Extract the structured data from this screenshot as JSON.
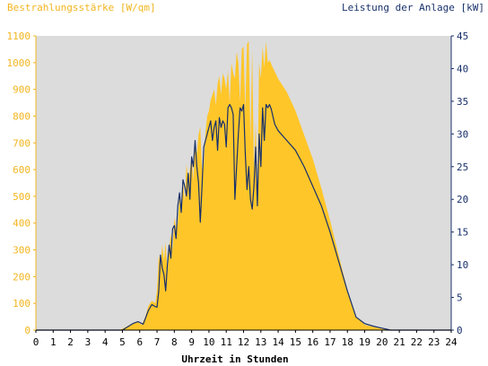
{
  "chart_data": {
    "type": "area",
    "left_axis_title": "Bestrahlungsstärke [W/qm]",
    "right_axis_title": "Leistung der Anlage [kW]",
    "xlabel": "Uhrzeit in Stunden",
    "xlim": [
      0,
      24
    ],
    "ylim_left": [
      0,
      1100
    ],
    "ylim_right": [
      0,
      45
    ],
    "x_ticks": [
      "0",
      "1",
      "2",
      "3",
      "4",
      "5",
      "6",
      "7",
      "8",
      "9",
      "10",
      "11",
      "12",
      "13",
      "14",
      "15",
      "16",
      "17",
      "18",
      "19",
      "20",
      "21",
      "22",
      "23",
      "24"
    ],
    "y_left_ticks": [
      "0",
      "100",
      "200",
      "300",
      "400",
      "500",
      "600",
      "700",
      "800",
      "900",
      "1000",
      "1100"
    ],
    "y_right_ticks": [
      "0",
      "5",
      "10",
      "15",
      "20",
      "25",
      "30",
      "35",
      "40",
      "45"
    ],
    "colors": {
      "irradiance": "#ffc629",
      "power": "#17306b",
      "plot_bg": "#dcdcdc",
      "left_axis": "#f2b51f",
      "right_axis": "#17306b"
    },
    "series": [
      {
        "unit": "W/qm",
        "axis": "left",
        "points": [
          [
            0,
            0
          ],
          [
            4.8,
            0
          ],
          [
            5.0,
            5
          ],
          [
            5.3,
            15
          ],
          [
            5.6,
            25
          ],
          [
            5.9,
            30
          ],
          [
            6.1,
            20
          ],
          [
            6.3,
            45
          ],
          [
            6.5,
            90
          ],
          [
            6.7,
            110
          ],
          [
            6.9,
            100
          ],
          [
            7.0,
            150
          ],
          [
            7.1,
            280
          ],
          [
            7.2,
            240
          ],
          [
            7.3,
            320
          ],
          [
            7.4,
            260
          ],
          [
            7.5,
            330
          ],
          [
            7.6,
            210
          ],
          [
            7.7,
            300
          ],
          [
            7.8,
            360
          ],
          [
            7.9,
            300
          ],
          [
            8.0,
            420
          ],
          [
            8.1,
            380
          ],
          [
            8.2,
            400
          ],
          [
            8.3,
            500
          ],
          [
            8.4,
            460
          ],
          [
            8.5,
            560
          ],
          [
            8.6,
            480
          ],
          [
            8.7,
            620
          ],
          [
            8.8,
            560
          ],
          [
            8.9,
            600
          ],
          [
            9.0,
            650
          ],
          [
            9.1,
            560
          ],
          [
            9.2,
            700
          ],
          [
            9.3,
            660
          ],
          [
            9.4,
            730
          ],
          [
            9.5,
            760
          ],
          [
            9.6,
            600
          ],
          [
            9.7,
            620
          ],
          [
            9.8,
            740
          ],
          [
            9.9,
            800
          ],
          [
            10.0,
            820
          ],
          [
            10.1,
            860
          ],
          [
            10.2,
            880
          ],
          [
            10.3,
            900
          ],
          [
            10.4,
            840
          ],
          [
            10.5,
            920
          ],
          [
            10.6,
            950
          ],
          [
            10.7,
            880
          ],
          [
            10.8,
            960
          ],
          [
            10.9,
            940
          ],
          [
            11.0,
            900
          ],
          [
            11.1,
            970
          ],
          [
            11.2,
            850
          ],
          [
            11.3,
            1000
          ],
          [
            11.4,
            960
          ],
          [
            11.5,
            940
          ],
          [
            11.6,
            1040
          ],
          [
            11.7,
            1000
          ],
          [
            11.8,
            850
          ],
          [
            11.9,
            1050
          ],
          [
            12.0,
            1060
          ],
          [
            12.1,
            820
          ],
          [
            12.2,
            1070
          ],
          [
            12.3,
            1080
          ],
          [
            12.4,
            700
          ],
          [
            12.5,
            1050
          ],
          [
            12.6,
            600
          ],
          [
            12.7,
            780
          ],
          [
            12.8,
            520
          ],
          [
            12.9,
            1000
          ],
          [
            13.0,
            940
          ],
          [
            13.1,
            1060
          ],
          [
            13.2,
            980
          ],
          [
            13.3,
            1080
          ],
          [
            13.4,
            1000
          ],
          [
            13.5,
            1010
          ],
          [
            13.7,
            980
          ],
          [
            14.0,
            940
          ],
          [
            14.5,
            890
          ],
          [
            15.0,
            820
          ],
          [
            15.5,
            730
          ],
          [
            16.0,
            640
          ],
          [
            16.5,
            530
          ],
          [
            17.0,
            410
          ],
          [
            17.5,
            280
          ],
          [
            18.0,
            150
          ],
          [
            18.5,
            50
          ],
          [
            19.0,
            20
          ],
          [
            19.5,
            12
          ],
          [
            20.0,
            5
          ],
          [
            20.5,
            0
          ],
          [
            24,
            0
          ]
        ]
      },
      {
        "unit": "kW",
        "axis": "right",
        "points": [
          [
            0,
            0
          ],
          [
            5.0,
            0
          ],
          [
            5.3,
            0.5
          ],
          [
            5.6,
            1.0
          ],
          [
            5.9,
            1.3
          ],
          [
            6.2,
            0.9
          ],
          [
            6.5,
            3.0
          ],
          [
            6.7,
            3.9
          ],
          [
            6.9,
            3.6
          ],
          [
            7.0,
            3.5
          ],
          [
            7.1,
            6.0
          ],
          [
            7.2,
            11.5
          ],
          [
            7.3,
            9.5
          ],
          [
            7.4,
            8.5
          ],
          [
            7.5,
            6.0
          ],
          [
            7.6,
            10.0
          ],
          [
            7.7,
            13.0
          ],
          [
            7.8,
            11.0
          ],
          [
            7.9,
            15.5
          ],
          [
            8.0,
            16.0
          ],
          [
            8.1,
            14.0
          ],
          [
            8.2,
            19.0
          ],
          [
            8.3,
            21.0
          ],
          [
            8.4,
            18.0
          ],
          [
            8.5,
            23.0
          ],
          [
            8.6,
            22.0
          ],
          [
            8.7,
            20.5
          ],
          [
            8.8,
            24.0
          ],
          [
            8.9,
            20.0
          ],
          [
            9.0,
            26.5
          ],
          [
            9.1,
            25.0
          ],
          [
            9.2,
            29.0
          ],
          [
            9.3,
            25.0
          ],
          [
            9.4,
            22.5
          ],
          [
            9.5,
            16.5
          ],
          [
            9.6,
            22.0
          ],
          [
            9.7,
            28.0
          ],
          [
            9.8,
            29.0
          ],
          [
            9.9,
            30.0
          ],
          [
            10.0,
            31.0
          ],
          [
            10.1,
            32.0
          ],
          [
            10.2,
            29.0
          ],
          [
            10.3,
            31.0
          ],
          [
            10.4,
            32.0
          ],
          [
            10.5,
            27.5
          ],
          [
            10.6,
            32.5
          ],
          [
            10.7,
            31.0
          ],
          [
            10.8,
            32.0
          ],
          [
            10.9,
            31.5
          ],
          [
            11.0,
            28.0
          ],
          [
            11.1,
            34.0
          ],
          [
            11.2,
            34.5
          ],
          [
            11.3,
            34.0
          ],
          [
            11.4,
            33.0
          ],
          [
            11.5,
            20.0
          ],
          [
            11.6,
            25.0
          ],
          [
            11.7,
            30.0
          ],
          [
            11.8,
            34.0
          ],
          [
            11.9,
            33.5
          ],
          [
            12.0,
            34.5
          ],
          [
            12.1,
            27.0
          ],
          [
            12.2,
            21.5
          ],
          [
            12.3,
            25.0
          ],
          [
            12.4,
            20.0
          ],
          [
            12.5,
            18.5
          ],
          [
            12.6,
            22.0
          ],
          [
            12.7,
            28.0
          ],
          [
            12.8,
            19.0
          ],
          [
            12.9,
            30.0
          ],
          [
            13.0,
            25.0
          ],
          [
            13.1,
            34.0
          ],
          [
            13.2,
            29.0
          ],
          [
            13.3,
            34.5
          ],
          [
            13.4,
            34.0
          ],
          [
            13.5,
            34.5
          ],
          [
            13.6,
            33.8
          ],
          [
            13.8,
            31.5
          ],
          [
            14.0,
            30.5
          ],
          [
            14.5,
            29.0
          ],
          [
            15.0,
            27.5
          ],
          [
            15.5,
            25.0
          ],
          [
            16.0,
            22.0
          ],
          [
            16.5,
            19.0
          ],
          [
            17.0,
            15.0
          ],
          [
            17.5,
            10.5
          ],
          [
            18.0,
            6.0
          ],
          [
            18.5,
            2.0
          ],
          [
            19.0,
            1.0
          ],
          [
            19.5,
            0.6
          ],
          [
            20.0,
            0.3
          ],
          [
            20.5,
            0
          ],
          [
            24,
            0
          ]
        ]
      }
    ]
  }
}
